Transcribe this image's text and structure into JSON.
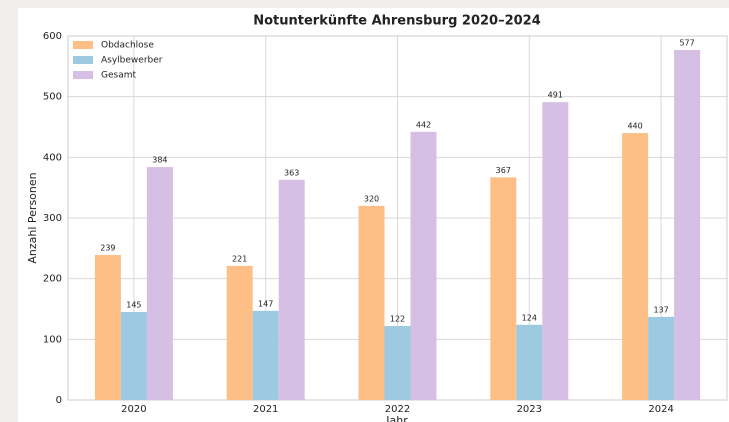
{
  "chart_data": {
    "type": "bar",
    "title": "Notunterkünfte Ahrensburg 2020–2024",
    "x_label": "Jahr",
    "y_label": "Anzahl Personen",
    "categories": [
      "2020",
      "2021",
      "2022",
      "2023",
      "2024"
    ],
    "series": [
      {
        "name": "Obdachlose",
        "color": "#fdbf86",
        "values": [
          239,
          221,
          320,
          367,
          440
        ]
      },
      {
        "name": "Asylbewerber",
        "color": "#9ecae1",
        "values": [
          145,
          147,
          122,
          124,
          137
        ]
      },
      {
        "name": "Gesamt",
        "color": "#d6bfe4",
        "values": [
          384,
          363,
          442,
          491,
          577
        ]
      }
    ],
    "ylim": [
      0,
      600
    ],
    "yticks": [
      0,
      100,
      200,
      300,
      400,
      500,
      600
    ],
    "grid": true,
    "legend": "upper left"
  }
}
